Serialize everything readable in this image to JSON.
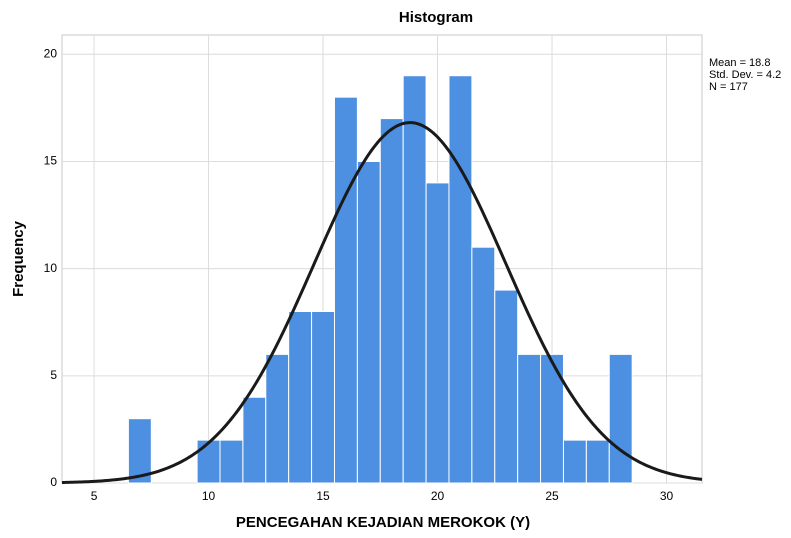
{
  "chart_data": {
    "type": "histogram",
    "title": "Histogram",
    "x_label": "PENCEGAHAN KEJADIAN MEROKOK (Y)",
    "y_label": "Frequency",
    "bins": [
      6.5,
      7.5,
      8.5,
      9.5,
      10.5,
      11.5,
      12.5,
      13.5,
      14.5,
      15.5,
      16.5,
      17.5,
      18.5,
      19.5,
      20.5,
      21.5,
      22.5,
      23.5,
      24.5,
      25.5,
      26.5,
      27.5,
      28.5
    ],
    "values": [
      3,
      0,
      0,
      2,
      2,
      4,
      6,
      8,
      8,
      18,
      15,
      17,
      19,
      14,
      19,
      11,
      9,
      6,
      6,
      2,
      2,
      6
    ],
    "color": "#4d8fe0",
    "curve_color": "#1a1a1a",
    "xlim": [
      3.6,
      31.55
    ],
    "ylim": [
      0,
      20.9
    ],
    "xticks": [
      5,
      10,
      15,
      20,
      25,
      30
    ],
    "yticks": [
      0,
      5,
      10,
      15,
      20
    ],
    "grid": true,
    "stats": {
      "mean": {
        "value": 18.8,
        "label": "Mean = 18.8"
      },
      "sd": {
        "value": 4.2,
        "label": "Std. Dev. = 4.2"
      },
      "n": {
        "value": 177,
        "label": "N = 177"
      }
    }
  }
}
